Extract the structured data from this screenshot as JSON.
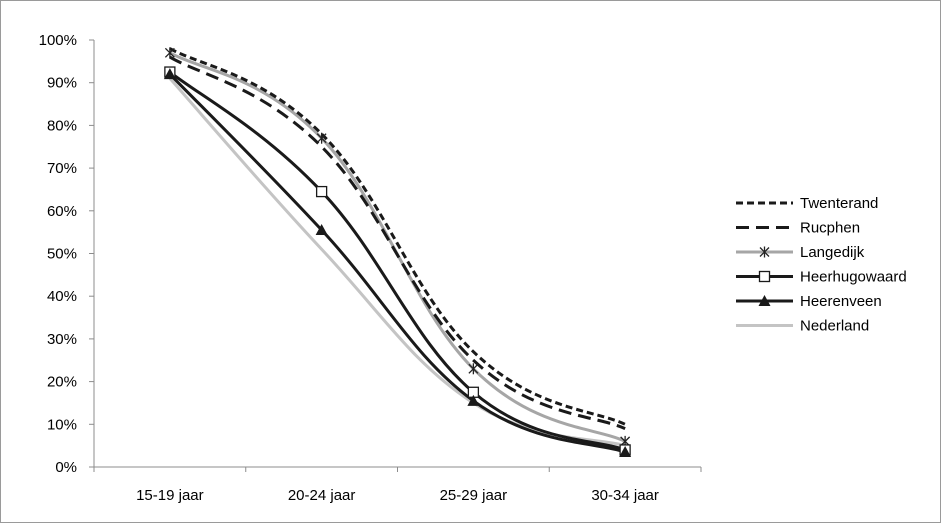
{
  "chart_data": {
    "type": "line",
    "categories": [
      "15-19 jaar",
      "20-24 jaar",
      "25-29 jaar",
      "30-34 jaar"
    ],
    "ylim": [
      0,
      100
    ],
    "yticks": [
      "0%",
      "10%",
      "20%",
      "30%",
      "40%",
      "50%",
      "60%",
      "70%",
      "80%",
      "90%",
      "100%"
    ],
    "grid": false,
    "legend_position": "right",
    "series": [
      {
        "name": "Twenterand",
        "values": [
          98,
          78,
          27,
          10
        ],
        "color": "#1a1a1a",
        "dash": "short",
        "marker": "none"
      },
      {
        "name": "Rucphen",
        "values": [
          96,
          75,
          25,
          9
        ],
        "color": "#1a1a1a",
        "dash": "long",
        "marker": "none"
      },
      {
        "name": "Langedijk",
        "values": [
          97,
          77,
          23,
          6
        ],
        "color": "#a6a6a6",
        "dash": "solid",
        "marker": "star"
      },
      {
        "name": "Heerhugowaard",
        "values": [
          92.5,
          64.5,
          17.5,
          4
        ],
        "color": "#1a1a1a",
        "dash": "solid",
        "marker": "square"
      },
      {
        "name": "Heerenveen",
        "values": [
          92,
          55.5,
          15.5,
          3.5
        ],
        "color": "#1a1a1a",
        "dash": "solid",
        "marker": "triangle"
      },
      {
        "name": "Nederland",
        "values": [
          91,
          51,
          15,
          5
        ],
        "color": "#c4c4c4",
        "dash": "solid",
        "marker": "none"
      }
    ]
  }
}
